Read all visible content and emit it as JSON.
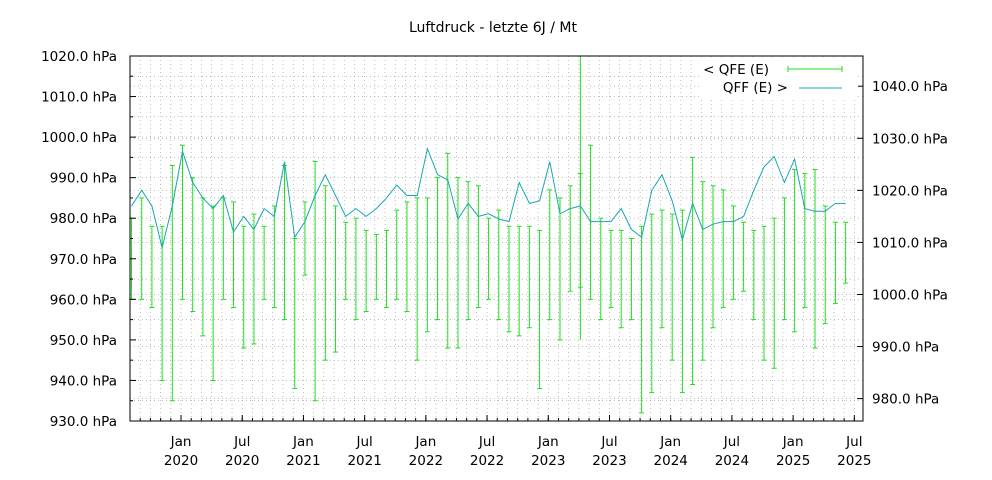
{
  "chart_data": {
    "type": "line",
    "title": "Luftdruck  -  letzte 6J / Mt",
    "left_axis": {
      "ylim": [
        930,
        1020
      ],
      "ticks": [
        "1020.0 hPa",
        "1010.0 hPa",
        "1000.0 hPa",
        "990.0 hPa",
        "980.0 hPa",
        "970.0 hPa",
        "960.0 hPa",
        "950.0 hPa",
        "940.0 hPa",
        "930.0 hPa"
      ],
      "tick_values": [
        1020,
        1010,
        1000,
        990,
        980,
        970,
        960,
        950,
        940,
        930
      ]
    },
    "right_axis": {
      "ylim": [
        975.7,
        1045.8
      ],
      "ticks": [
        "1040.0 hPa",
        "1030.0 hPa",
        "1020.0 hPa",
        "1010.0 hPa",
        "1000.0 hPa",
        "990.0 hPa",
        "980.0 hPa"
      ],
      "tick_values": [
        1040,
        1030,
        1020,
        1010,
        1000,
        990,
        980
      ]
    },
    "x_axis": {
      "start_month": 0,
      "end_month": 71,
      "tick_labels": [
        {
          "top": "Jan",
          "bottom": "2020",
          "month": 5
        },
        {
          "top": "Jul",
          "bottom": "2020",
          "month": 11
        },
        {
          "top": "Jan",
          "bottom": "2021",
          "month": 17
        },
        {
          "top": "Jul",
          "bottom": "2021",
          "month": 23
        },
        {
          "top": "Jan",
          "bottom": "2022",
          "month": 29
        },
        {
          "top": "Jul",
          "bottom": "2022",
          "month": 35
        },
        {
          "top": "Jan",
          "bottom": "2023",
          "month": 41
        },
        {
          "top": "Jul",
          "bottom": "2023",
          "month": 47
        },
        {
          "top": "Jan",
          "bottom": "2024",
          "month": 53
        },
        {
          "top": "Jul",
          "bottom": "2024",
          "month": 59
        },
        {
          "top": "Jan",
          "bottom": "2025",
          "month": 65
        },
        {
          "top": "Jul",
          "bottom": "2025",
          "month": 71
        }
      ]
    },
    "legend": {
      "placement": "top-right",
      "qfe_label": "< QFE (E)",
      "qff_label": "QFF (E)  >"
    },
    "colors": {
      "qfe": "#22dd22",
      "qff": "#19a8b0",
      "grid": "#999999"
    },
    "series": [
      {
        "name": "< QFE (E)",
        "kind": "errorbars",
        "low": [
          960,
          960,
          958,
          940,
          935,
          960,
          957,
          951,
          940,
          960,
          958,
          948,
          949,
          960,
          958,
          955,
          938,
          966,
          935,
          945,
          947,
          960,
          955,
          957,
          960,
          958,
          960,
          957,
          945,
          952,
          955,
          948,
          948,
          955,
          958,
          960,
          955,
          952,
          951,
          953,
          938,
          955,
          950,
          962,
          963,
          960,
          955,
          958,
          953,
          955,
          932,
          937,
          953,
          945,
          937,
          939,
          945,
          953,
          958,
          960,
          962,
          955,
          945,
          943,
          955,
          952,
          958,
          948,
          954,
          959,
          964
        ],
        "high": [
          980,
          985,
          978,
          978,
          993,
          998,
          990,
          985,
          983,
          985,
          984,
          978,
          981,
          978,
          983,
          993,
          975,
          984,
          994,
          988,
          983,
          979,
          980,
          977,
          976,
          977,
          982,
          984,
          985,
          985,
          990,
          996,
          990,
          989,
          988,
          980,
          982,
          978,
          978,
          978,
          977,
          987,
          985,
          988,
          991,
          998,
          980,
          977,
          977,
          975,
          978,
          981,
          982,
          981,
          982,
          995,
          989,
          988,
          987,
          983,
          979,
          977,
          978,
          980,
          985,
          992,
          991,
          992,
          983,
          979,
          979
        ]
      },
      {
        "name": "QFF (E)  >",
        "kind": "line",
        "values": [
          1017.0,
          1020.0,
          1017.0,
          1009.0,
          1017.0,
          1027.5,
          1021.5,
          1018.5,
          1016.5,
          1019.0,
          1012.0,
          1015.0,
          1012.5,
          1016.5,
          1015.0,
          1025.5,
          1011.0,
          1014.0,
          1019.0,
          1023.0,
          1019.0,
          1015.0,
          1016.5,
          1015.0,
          1016.5,
          1018.5,
          1021.0,
          1019.0,
          1019.0,
          1028.0,
          1023.0,
          1022.0,
          1014.5,
          1017.5,
          1015.0,
          1015.5,
          1014.5,
          1014.0,
          1021.5,
          1017.5,
          1018.0,
          1025.5,
          1015.5,
          1016.5,
          1017.0,
          1014.0,
          1014.0,
          1014.0,
          1016.5,
          1012.5,
          1011.0,
          1020.0,
          1023.0,
          1018.0,
          1010.5,
          1017.5,
          1012.5,
          1013.5,
          1014.0,
          1014.0,
          1015.0,
          1020.0,
          1024.5,
          1026.5,
          1021.5,
          1026.0,
          1016.5,
          1016.0,
          1016.0,
          1017.5,
          1017.5
        ]
      }
    ],
    "overflow_spike": {
      "month": 44,
      "low": 950,
      "high": 1020
    }
  }
}
